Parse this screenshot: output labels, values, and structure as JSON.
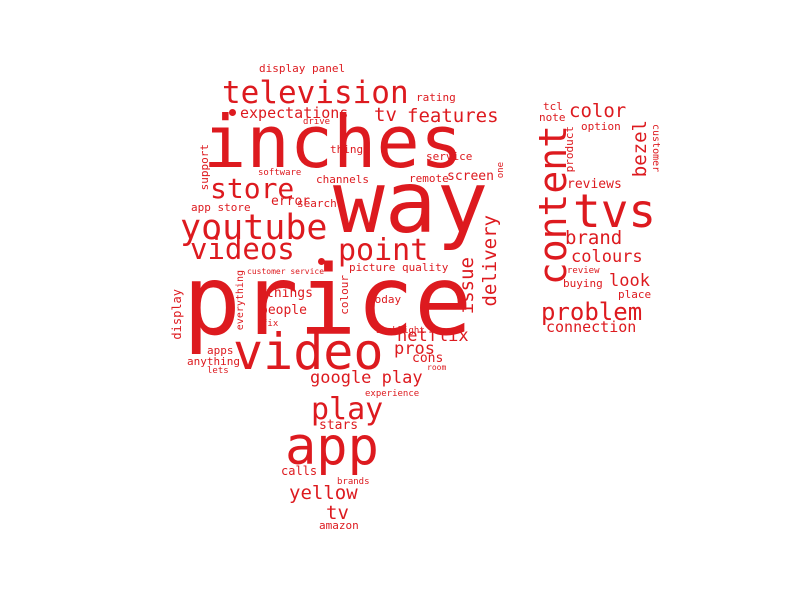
{
  "words": {
    "inches": "inches",
    "way": "way",
    "price": "price",
    "video": "video",
    "app": "app",
    "tvs": "tvs",
    "content": "content",
    "television": "television",
    "youtube": "youtube",
    "videos": "videos",
    "point": "point",
    "store": "store",
    "play": "play",
    "problem": "problem",
    "features": "features",
    "expectations": "expectations",
    "tv_main": "tv",
    "tv_small": "tv",
    "google_play": "google play",
    "yellow": "yellow",
    "delivery": "delivery",
    "issue": "issue",
    "netflix": "netflix",
    "pros": "pros",
    "cons": "cons",
    "color": "color",
    "bezel": "bezel",
    "brand": "brand",
    "colours": "colours",
    "look": "look",
    "connection": "connection",
    "reviews": "reviews",
    "display_panel": "display panel",
    "rating": "rating",
    "drive": "drive",
    "tcl": "tcl",
    "note": "note",
    "option": "option",
    "product": "product",
    "customer": "customer",
    "thing": "thing",
    "service": "service",
    "software": "software",
    "channels": "channels",
    "remote": "remote",
    "screen": "screen",
    "one": "one",
    "support": "support",
    "error": "error",
    "search": "search",
    "app_store": "app store",
    "review": "review",
    "buying": "buying",
    "place": "place",
    "customer_service": "customer service",
    "picture_quality": "picture quality",
    "everything": "everything",
    "things": "things",
    "colour": "colour",
    "today": "today",
    "people": "people",
    "display": "display",
    "fix": "fix",
    "backlight": "backlight",
    "apps": "apps",
    "anything": "anything",
    "lets": "lets",
    "room": "room",
    "experience": "experience",
    "stars": "stars",
    "calls": "calls",
    "brands": "brands",
    "amazon": "amazon"
  },
  "colors": {
    "word": "#dd1a1f",
    "background": "#ffffff"
  }
}
